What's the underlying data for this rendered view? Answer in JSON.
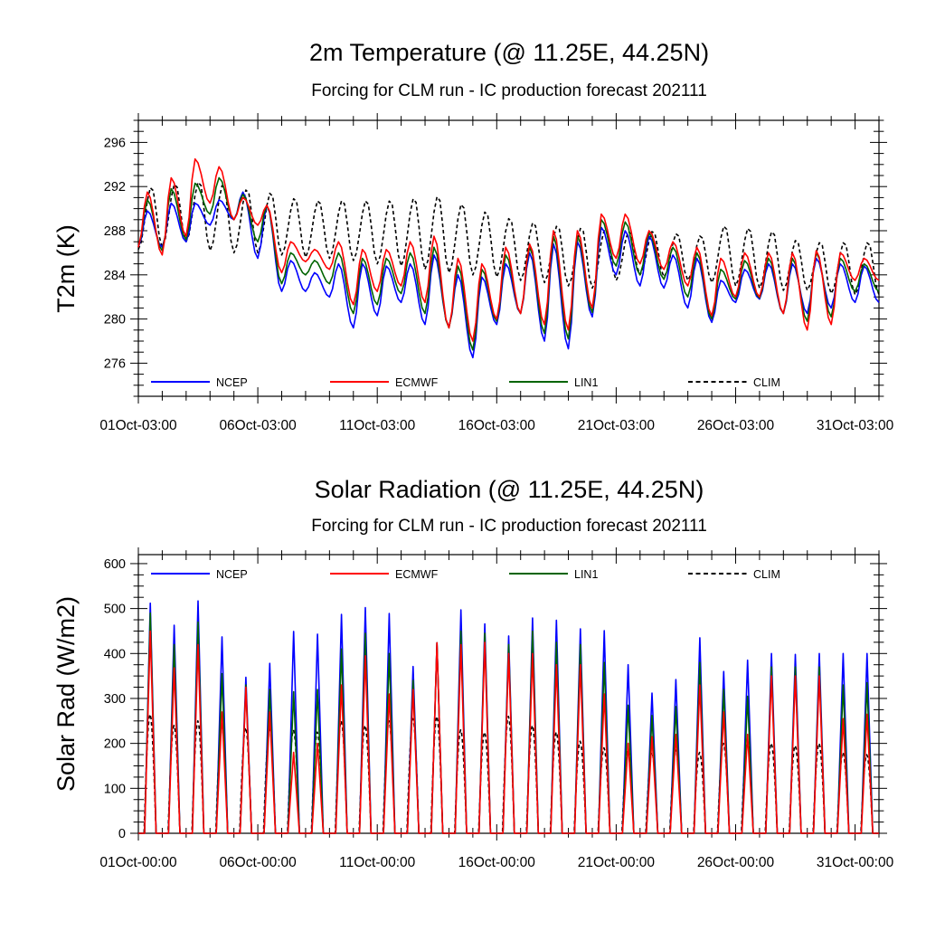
{
  "chart_data": [
    {
      "type": "line",
      "title": "2m Temperature (@ 11.25E, 44.25N)",
      "subtitle": "Forcing for CLM run - IC production forecast 202111",
      "ylabel": "T2m (K)",
      "xlabel": "",
      "xlim": [
        0,
        31
      ],
      "ylim": [
        273,
        298
      ],
      "yticks": [
        276,
        280,
        284,
        288,
        292,
        296
      ],
      "xticks": [
        {
          "x": 0,
          "label": "01Oct-03:00"
        },
        {
          "x": 5,
          "label": "06Oct-03:00"
        },
        {
          "x": 10,
          "label": "11Oct-03:00"
        },
        {
          "x": 15,
          "label": "16Oct-03:00"
        },
        {
          "x": 20,
          "label": "21Oct-03:00"
        },
        {
          "x": 25,
          "label": "26Oct-03:00"
        },
        {
          "x": 30,
          "label": "31Oct-03:00"
        }
      ],
      "legend_position": "bottom, inside plot",
      "daily_min": {
        "NCEP": [
          286.5,
          286.5,
          287.0,
          288.5,
          289.0,
          285.5,
          282.5,
          282.5,
          282.0,
          279.2,
          280.3,
          281.5,
          279.5,
          279.3,
          276.5,
          279.5,
          280.5,
          278.0,
          277.3,
          280.2,
          284.0,
          283.0,
          282.8,
          281.0,
          279.7,
          281.5,
          281.8,
          280.5,
          280.5,
          281.0,
          281.5
        ],
        "ECMWF": [
          286.5,
          285.8,
          287.5,
          290.5,
          289.0,
          288.5,
          284.2,
          285.2,
          284.5,
          281.3,
          282.5,
          283.0,
          281.5,
          279.2,
          278.0,
          280.0,
          280.5,
          279.5,
          279.0,
          281.0,
          285.5,
          285.0,
          284.5,
          283.0,
          280.3,
          282.0,
          282.0,
          280.5,
          279.0,
          279.5,
          283.5
        ],
        "LIN1": [
          286.5,
          286.2,
          287.2,
          289.5,
          289.0,
          287.0,
          283.2,
          284.0,
          283.2,
          280.5,
          281.3,
          282.3,
          280.5,
          279.2,
          277.2,
          279.8,
          280.5,
          278.7,
          278.2,
          280.6,
          284.8,
          284.0,
          283.6,
          282.0,
          280.0,
          281.8,
          281.9,
          280.5,
          279.8,
          280.2,
          282.5
        ],
        "CLIM": [
          286.3,
          286.5,
          287.0,
          286.2,
          286.0,
          286.0,
          285.8,
          285.6,
          285.5,
          285.3,
          285.0,
          284.8,
          284.5,
          284.2,
          284.0,
          283.8,
          283.5,
          283.3,
          283.0,
          282.8,
          283.5,
          284.0,
          283.8,
          283.5,
          283.3,
          283.0,
          282.8,
          282.6,
          282.6,
          282.3,
          282.2
        ]
      },
      "daily_max": {
        "NCEP": [
          289.8,
          290.5,
          290.5,
          290.8,
          291.5,
          290.3,
          285.3,
          284.2,
          285.0,
          285.0,
          284.8,
          285.0,
          285.8,
          284.0,
          283.8,
          285.0,
          286.0,
          286.8,
          287.0,
          288.3,
          288.0,
          287.5,
          285.8,
          285.5,
          283.5,
          284.5,
          285.0,
          285.0,
          285.5,
          285.0,
          284.8
        ],
        "ECMWF": [
          291.5,
          292.8,
          294.5,
          293.8,
          291.0,
          290.3,
          287.0,
          286.3,
          287.0,
          286.3,
          286.3,
          287.0,
          287.5,
          285.5,
          285.0,
          286.5,
          286.8,
          288.0,
          288.0,
          289.5,
          289.5,
          288.0,
          287.0,
          286.5,
          285.5,
          286.0,
          286.0,
          286.0,
          286.2,
          286.0,
          285.5
        ],
        "LIN1": [
          290.8,
          291.8,
          292.3,
          292.8,
          291.3,
          290.3,
          286.0,
          285.3,
          286.0,
          285.5,
          285.5,
          286.0,
          286.5,
          284.8,
          284.5,
          285.8,
          286.5,
          287.5,
          287.5,
          289.0,
          288.8,
          287.8,
          286.5,
          286.0,
          284.5,
          285.3,
          285.5,
          285.5,
          286.0,
          285.5,
          285.0
        ],
        "CLIM": [
          292.0,
          292.3,
          292.5,
          292.2,
          291.8,
          291.5,
          291.0,
          290.8,
          290.8,
          290.8,
          290.8,
          291.0,
          291.2,
          290.5,
          289.8,
          289.2,
          288.8,
          288.5,
          288.3,
          288.2,
          288.0,
          288.0,
          287.8,
          287.6,
          288.5,
          288.3,
          288.0,
          287.2,
          287.0,
          287.0,
          287.0
        ]
      },
      "series": [
        {
          "name": "NCEP",
          "color": "#0000ff",
          "dash": "solid"
        },
        {
          "name": "ECMWF",
          "color": "#ff0000",
          "dash": "solid"
        },
        {
          "name": "LIN1",
          "color": "#006400",
          "dash": "solid"
        },
        {
          "name": "CLIM",
          "color": "#000000",
          "dash": "dashed"
        }
      ]
    },
    {
      "type": "line",
      "title": "Solar Radiation (@ 11.25E, 44.25N)",
      "subtitle": "Forcing for CLM run - IC production forecast 202111",
      "ylabel": "Solar Rad (W/m2)",
      "xlabel": "",
      "xlim": [
        0,
        31
      ],
      "ylim": [
        0,
        620
      ],
      "yticks": [
        0,
        100,
        200,
        300,
        400,
        500,
        600
      ],
      "xticks": [
        {
          "x": 0,
          "label": "01Oct-00:00"
        },
        {
          "x": 5,
          "label": "06Oct-00:00"
        },
        {
          "x": 10,
          "label": "11Oct-00:00"
        },
        {
          "x": 15,
          "label": "16Oct-00:00"
        },
        {
          "x": 20,
          "label": "21Oct-00:00"
        },
        {
          "x": 25,
          "label": "26Oct-00:00"
        },
        {
          "x": 30,
          "label": "31Oct-00:00"
        }
      ],
      "legend_position": "top, inside plot",
      "daily_peak": {
        "NCEP": [
          512,
          463,
          517,
          437,
          347,
          378,
          449,
          443,
          487,
          502,
          489,
          371,
          424,
          497,
          466,
          439,
          479,
          474,
          455,
          451,
          375,
          312,
          342,
          435,
          360,
          385,
          400,
          398,
          400,
          400,
          400
        ],
        "ECMWF": [
          450,
          368,
          420,
          270,
          325,
          270,
          180,
          200,
          330,
          395,
          310,
          320,
          424,
          420,
          425,
          400,
          400,
          375,
          375,
          310,
          200,
          215,
          220,
          330,
          270,
          220,
          350,
          350,
          350,
          255,
          265
        ],
        "LIN1": [
          490,
          420,
          470,
          355,
          330,
          320,
          315,
          320,
          410,
          445,
          400,
          340,
          424,
          450,
          445,
          420,
          450,
          425,
          420,
          380,
          285,
          262,
          282,
          380,
          320,
          305,
          370,
          370,
          370,
          330,
          335
        ],
        "CLIM": [
          265,
          240,
          250,
          240,
          235,
          235,
          230,
          225,
          250,
          240,
          250,
          255,
          260,
          230,
          225,
          260,
          240,
          225,
          205,
          190,
          185,
          180,
          185,
          180,
          200,
          205,
          200,
          195,
          200,
          180,
          175
        ]
      },
      "series": [
        {
          "name": "NCEP",
          "color": "#0000ff",
          "dash": "solid"
        },
        {
          "name": "ECMWF",
          "color": "#ff0000",
          "dash": "solid"
        },
        {
          "name": "LIN1",
          "color": "#006400",
          "dash": "solid"
        },
        {
          "name": "CLIM",
          "color": "#000000",
          "dash": "dashed"
        }
      ]
    }
  ]
}
